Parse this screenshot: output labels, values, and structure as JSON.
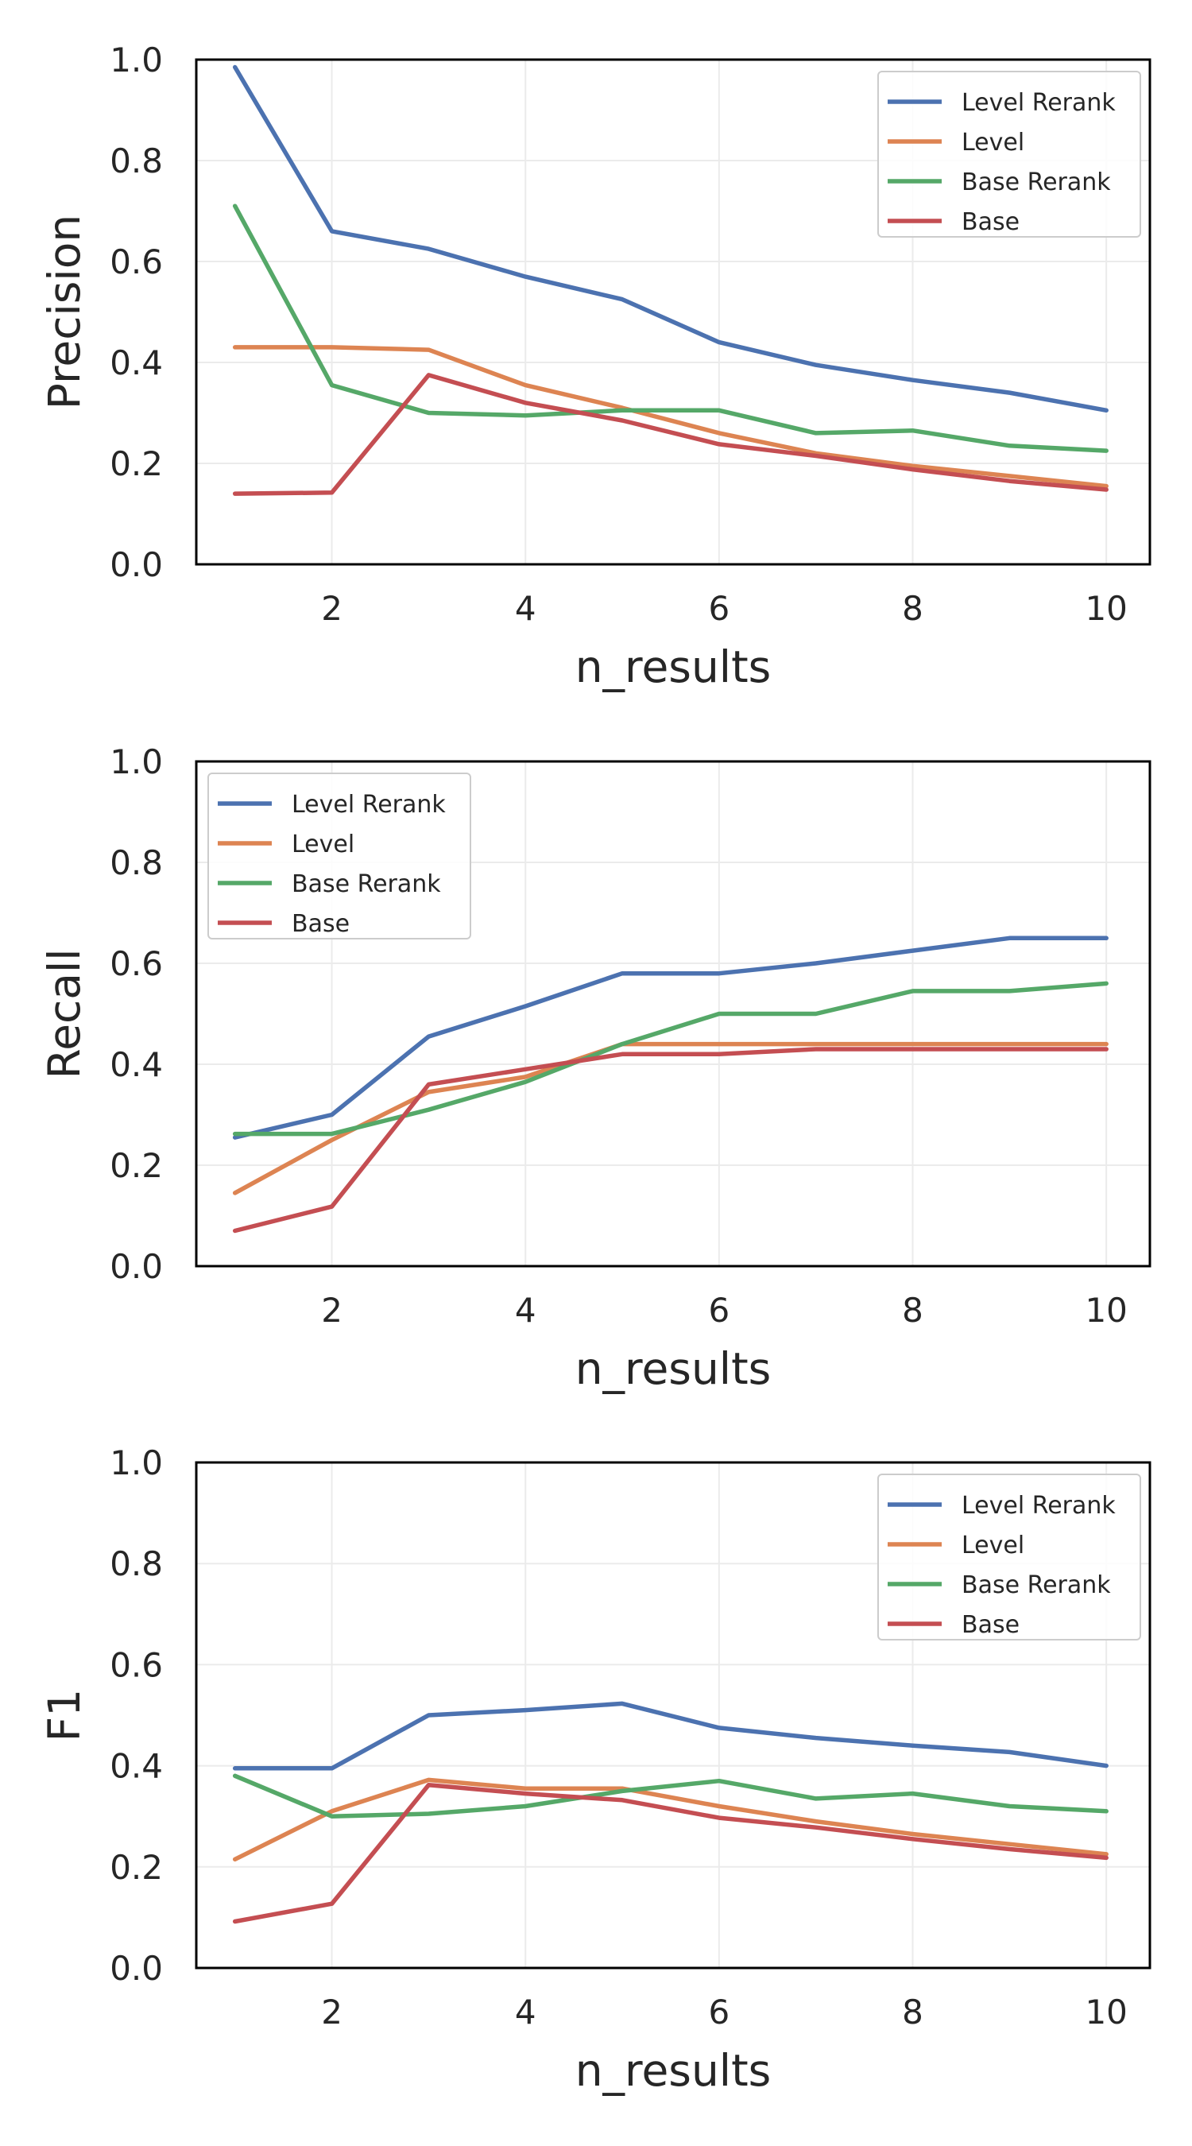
{
  "chart_data": [
    {
      "type": "line",
      "xlabel": "n_results",
      "ylabel": "Precision",
      "xlim": [
        0.6,
        10.45
      ],
      "ylim": [
        0,
        1
      ],
      "xticks": [
        "2",
        "4",
        "6",
        "8",
        "10"
      ],
      "yticks": [
        "0.0",
        "0.2",
        "0.4",
        "0.6",
        "0.8",
        "1.0"
      ],
      "grid": true,
      "legend": "top-right",
      "x": [
        1,
        2,
        3,
        4,
        5,
        6,
        7,
        8,
        9,
        10
      ],
      "series": [
        {
          "name": "Level Rerank",
          "color": "#4c72b0",
          "values": [
            0.985,
            0.66,
            0.625,
            0.57,
            0.525,
            0.44,
            0.395,
            0.365,
            0.34,
            0.305
          ]
        },
        {
          "name": "Level",
          "color": "#dd8452",
          "values": [
            0.43,
            0.43,
            0.425,
            0.355,
            0.31,
            0.26,
            0.22,
            0.195,
            0.175,
            0.155
          ]
        },
        {
          "name": "Base Rerank",
          "color": "#55a868",
          "values": [
            0.71,
            0.355,
            0.3,
            0.295,
            0.305,
            0.305,
            0.26,
            0.265,
            0.235,
            0.225
          ]
        },
        {
          "name": "Base",
          "color": "#c44e52",
          "values": [
            0.14,
            0.142,
            0.375,
            0.32,
            0.285,
            0.238,
            0.215,
            0.188,
            0.165,
            0.148
          ]
        }
      ]
    },
    {
      "type": "line",
      "xlabel": "n_results",
      "ylabel": "Recall",
      "xlim": [
        0.6,
        10.45
      ],
      "ylim": [
        0,
        1
      ],
      "xticks": [
        "2",
        "4",
        "6",
        "8",
        "10"
      ],
      "yticks": [
        "0.0",
        "0.2",
        "0.4",
        "0.6",
        "0.8",
        "1.0"
      ],
      "grid": true,
      "legend": "top-left",
      "x": [
        1,
        2,
        3,
        4,
        5,
        6,
        7,
        8,
        9,
        10
      ],
      "series": [
        {
          "name": "Level Rerank",
          "color": "#4c72b0",
          "values": [
            0.255,
            0.3,
            0.455,
            0.515,
            0.58,
            0.58,
            0.6,
            0.625,
            0.65,
            0.65
          ]
        },
        {
          "name": "Level",
          "color": "#dd8452",
          "values": [
            0.145,
            0.25,
            0.345,
            0.375,
            0.44,
            0.44,
            0.44,
            0.44,
            0.44,
            0.44
          ]
        },
        {
          "name": "Base Rerank",
          "color": "#55a868",
          "values": [
            0.262,
            0.262,
            0.31,
            0.365,
            0.44,
            0.5,
            0.5,
            0.545,
            0.545,
            0.56
          ]
        },
        {
          "name": "Base",
          "color": "#c44e52",
          "values": [
            0.07,
            0.118,
            0.36,
            0.39,
            0.42,
            0.42,
            0.43,
            0.43,
            0.43,
            0.43
          ]
        }
      ]
    },
    {
      "type": "line",
      "xlabel": "n_results",
      "ylabel": "F1",
      "xlim": [
        0.6,
        10.45
      ],
      "ylim": [
        0,
        1
      ],
      "xticks": [
        "2",
        "4",
        "6",
        "8",
        "10"
      ],
      "yticks": [
        "0.0",
        "0.2",
        "0.4",
        "0.6",
        "0.8",
        "1.0"
      ],
      "grid": true,
      "legend": "top-right",
      "x": [
        1,
        2,
        3,
        4,
        5,
        6,
        7,
        8,
        9,
        10
      ],
      "series": [
        {
          "name": "Level Rerank",
          "color": "#4c72b0",
          "values": [
            0.395,
            0.395,
            0.5,
            0.51,
            0.523,
            0.475,
            0.455,
            0.44,
            0.427,
            0.4
          ]
        },
        {
          "name": "Level",
          "color": "#dd8452",
          "values": [
            0.215,
            0.31,
            0.372,
            0.355,
            0.355,
            0.32,
            0.29,
            0.265,
            0.245,
            0.225
          ]
        },
        {
          "name": "Base Rerank",
          "color": "#55a868",
          "values": [
            0.38,
            0.3,
            0.305,
            0.32,
            0.35,
            0.37,
            0.335,
            0.345,
            0.32,
            0.31
          ]
        },
        {
          "name": "Base",
          "color": "#c44e52",
          "values": [
            0.092,
            0.127,
            0.362,
            0.345,
            0.332,
            0.297,
            0.278,
            0.255,
            0.235,
            0.218
          ]
        }
      ]
    }
  ]
}
